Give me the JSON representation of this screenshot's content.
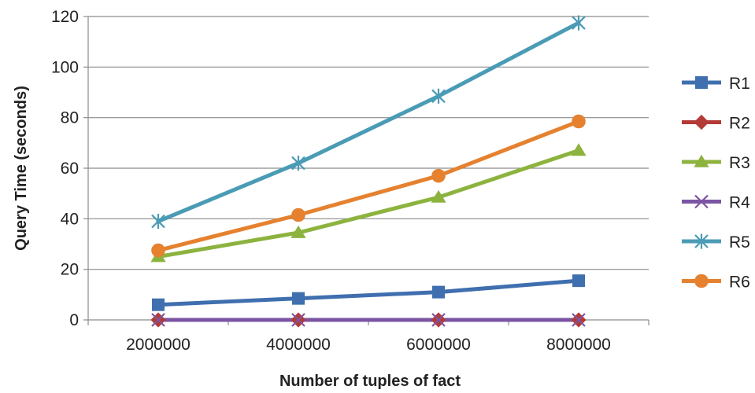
{
  "chart_data": {
    "type": "line",
    "title": "",
    "xlabel": "Number of tuples of fact",
    "ylabel": "Query Time  (seconds)",
    "categories": [
      "2000000",
      "4000000",
      "6000000",
      "8000000"
    ],
    "ylim": [
      0,
      120
    ],
    "yticks": [
      "0",
      "20",
      "40",
      "60",
      "80",
      "100",
      "120"
    ],
    "grid": "horizontal",
    "legend_position": "right",
    "series": [
      {
        "name": "R1",
        "values": [
          6,
          8.5,
          11,
          15.5
        ],
        "color": "#3F6FAE",
        "marker": "square"
      },
      {
        "name": "R2",
        "values": [
          0,
          0,
          0,
          0
        ],
        "color": "#B33A35",
        "marker": "diamond"
      },
      {
        "name": "R3",
        "values": [
          25,
          34.5,
          48.5,
          67
        ],
        "color": "#8DB33F",
        "marker": "triangle"
      },
      {
        "name": "R4",
        "values": [
          0,
          0,
          0,
          0
        ],
        "color": "#7B55A3",
        "marker": "x"
      },
      {
        "name": "R5",
        "values": [
          39,
          62,
          88.5,
          117.5
        ],
        "color": "#4A9BB5",
        "marker": "asterisk"
      },
      {
        "name": "R6",
        "values": [
          27.5,
          41.5,
          57,
          78.5
        ],
        "color": "#E5812F",
        "marker": "circle"
      }
    ]
  }
}
